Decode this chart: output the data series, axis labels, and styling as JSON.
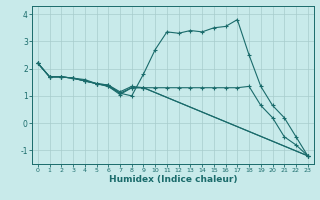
{
  "title": "",
  "xlabel": "Humidex (Indice chaleur)",
  "ylabel": "",
  "background_color": "#c8eaea",
  "grid_color": "#a8cccc",
  "line_color": "#1a6b6b",
  "marker": "+",
  "xlim": [
    -0.5,
    23.5
  ],
  "ylim": [
    -1.5,
    4.3
  ],
  "yticks": [
    -1,
    0,
    1,
    2,
    3,
    4
  ],
  "xticks": [
    0,
    1,
    2,
    3,
    4,
    5,
    6,
    7,
    8,
    9,
    10,
    11,
    12,
    13,
    14,
    15,
    16,
    17,
    18,
    19,
    20,
    21,
    22,
    23
  ],
  "series": [
    [
      0,
      2.2
    ],
    [
      1,
      1.7
    ],
    [
      2,
      1.7
    ],
    [
      3,
      1.65
    ],
    [
      4,
      1.6
    ],
    [
      5,
      1.45
    ],
    [
      6,
      1.4
    ],
    [
      7,
      1.1
    ],
    [
      8,
      1.0
    ],
    [
      9,
      1.8
    ],
    [
      10,
      2.7
    ],
    [
      11,
      3.35
    ],
    [
      12,
      3.3
    ],
    [
      13,
      3.4
    ],
    [
      14,
      3.35
    ],
    [
      15,
      3.5
    ],
    [
      16,
      3.55
    ],
    [
      17,
      3.8
    ],
    [
      18,
      2.5
    ],
    [
      19,
      1.35
    ],
    [
      20,
      0.65
    ],
    [
      21,
      0.2
    ],
    [
      22,
      -0.5
    ],
    [
      23,
      -1.2
    ]
  ],
  "series2": [
    [
      0,
      2.2
    ],
    [
      1,
      1.7
    ],
    [
      2,
      1.7
    ],
    [
      3,
      1.65
    ],
    [
      4,
      1.55
    ],
    [
      5,
      1.45
    ],
    [
      6,
      1.4
    ],
    [
      7,
      1.15
    ],
    [
      8,
      1.35
    ],
    [
      9,
      1.3
    ],
    [
      10,
      1.3
    ],
    [
      11,
      1.3
    ],
    [
      12,
      1.3
    ],
    [
      13,
      1.3
    ],
    [
      14,
      1.3
    ],
    [
      15,
      1.3
    ],
    [
      16,
      1.3
    ],
    [
      17,
      1.3
    ],
    [
      18,
      1.35
    ],
    [
      19,
      0.65
    ],
    [
      20,
      0.2
    ],
    [
      21,
      -0.5
    ],
    [
      22,
      -0.8
    ],
    [
      23,
      -1.2
    ]
  ],
  "series3": [
    [
      0,
      2.2
    ],
    [
      1,
      1.7
    ],
    [
      2,
      1.7
    ],
    [
      3,
      1.65
    ],
    [
      4,
      1.55
    ],
    [
      5,
      1.45
    ],
    [
      6,
      1.35
    ],
    [
      7,
      1.1
    ],
    [
      8,
      1.3
    ],
    [
      9,
      1.3
    ],
    [
      23,
      -1.2
    ]
  ],
  "series4": [
    [
      0,
      2.2
    ],
    [
      1,
      1.7
    ],
    [
      2,
      1.7
    ],
    [
      3,
      1.65
    ],
    [
      4,
      1.55
    ],
    [
      5,
      1.45
    ],
    [
      6,
      1.35
    ],
    [
      7,
      1.05
    ],
    [
      8,
      1.3
    ],
    [
      9,
      1.3
    ],
    [
      23,
      -1.2
    ]
  ]
}
